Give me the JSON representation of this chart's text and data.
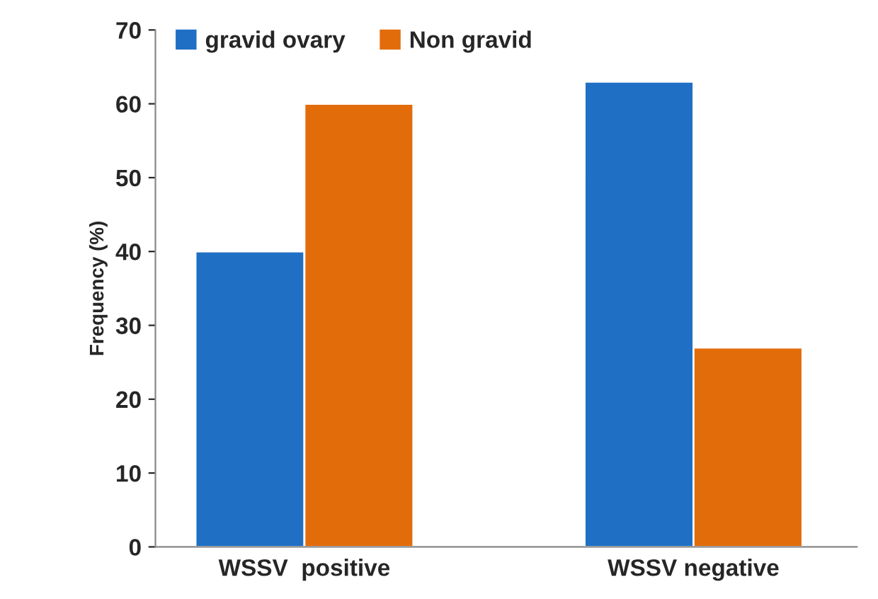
{
  "chart_data": {
    "type": "bar",
    "ylabel": "Frequency (%)",
    "categories": [
      "WSSV  positive",
      "WSSV negative"
    ],
    "series": [
      {
        "name": "gravid ovary",
        "color": "#1f6fc5",
        "values": [
          40,
          63
        ]
      },
      {
        "name": "Non gravid",
        "color": "#e36c0a",
        "values": [
          60,
          27
        ]
      }
    ],
    "ylim": [
      0,
      70
    ],
    "yticks": [
      0,
      10,
      20,
      30,
      40,
      50,
      60,
      70
    ],
    "grid": false,
    "legend": "top left"
  }
}
